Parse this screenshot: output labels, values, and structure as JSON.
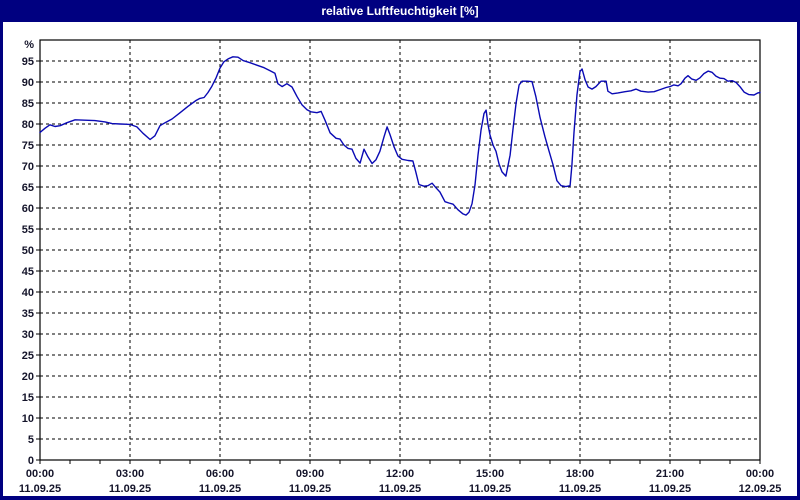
{
  "window": {
    "title": "relative Luftfeuchtigkeit [%]"
  },
  "colors": {
    "titlebar_bg": "#000080",
    "titlebar_text": "#ffffff",
    "frame": "#000080",
    "plot_bg": "#ffffff",
    "grid": "#000000",
    "line": "#0a0ab4",
    "axis_text": "#14142a"
  },
  "chart_data": {
    "type": "line",
    "title": "relative Luftfeuchtigkeit [%]",
    "ylabel": "%",
    "ylim": [
      0,
      100
    ],
    "xlim_hours": [
      0,
      24
    ],
    "grid": "dashed",
    "legend": "none",
    "y_ticks": [
      0,
      5,
      10,
      15,
      20,
      25,
      30,
      35,
      40,
      45,
      50,
      55,
      60,
      65,
      70,
      75,
      80,
      85,
      90,
      95
    ],
    "x_major_ticks": [
      {
        "hour": 0,
        "time": "00:00",
        "date": "11.09.25"
      },
      {
        "hour": 3,
        "time": "03:00",
        "date": "11.09.25"
      },
      {
        "hour": 6,
        "time": "06:00",
        "date": "11.09.25"
      },
      {
        "hour": 9,
        "time": "09:00",
        "date": "11.09.25"
      },
      {
        "hour": 12,
        "time": "12:00",
        "date": "11.09.25"
      },
      {
        "hour": 15,
        "time": "15:00",
        "date": "11.09.25"
      },
      {
        "hour": 18,
        "time": "18:00",
        "date": "11.09.25"
      },
      {
        "hour": 21,
        "time": "21:00",
        "date": "11.09.25"
      },
      {
        "hour": 24,
        "time": "00:00",
        "date": "12.09.25"
      }
    ],
    "x_minor_tick_interval_hours": 1,
    "series": [
      {
        "name": "relative Luftfeuchtigkeit [%]",
        "points": [
          [
            0.0,
            78.0
          ],
          [
            0.17,
            79.0
          ],
          [
            0.33,
            79.8
          ],
          [
            0.5,
            79.4
          ],
          [
            0.67,
            79.6
          ],
          [
            0.9,
            80.3
          ],
          [
            1.17,
            81.0
          ],
          [
            1.5,
            80.9
          ],
          [
            1.83,
            80.8
          ],
          [
            2.17,
            80.5
          ],
          [
            2.4,
            80.1
          ],
          [
            2.67,
            80.0
          ],
          [
            3.0,
            79.9
          ],
          [
            3.23,
            79.3
          ],
          [
            3.43,
            77.8
          ],
          [
            3.67,
            76.3
          ],
          [
            3.83,
            77.2
          ],
          [
            4.0,
            79.6
          ],
          [
            4.17,
            80.3
          ],
          [
            4.4,
            81.2
          ],
          [
            4.67,
            82.7
          ],
          [
            4.93,
            84.2
          ],
          [
            5.2,
            85.6
          ],
          [
            5.33,
            86.1
          ],
          [
            5.47,
            86.3
          ],
          [
            5.6,
            87.5
          ],
          [
            5.73,
            89.0
          ],
          [
            5.87,
            91.0
          ],
          [
            6.0,
            93.3
          ],
          [
            6.13,
            94.8
          ],
          [
            6.27,
            95.5
          ],
          [
            6.43,
            96.0
          ],
          [
            6.6,
            95.9
          ],
          [
            6.77,
            95.1
          ],
          [
            7.0,
            94.6
          ],
          [
            7.23,
            94.0
          ],
          [
            7.47,
            93.4
          ],
          [
            7.67,
            92.7
          ],
          [
            7.83,
            92.1
          ],
          [
            7.93,
            89.6
          ],
          [
            8.07,
            88.9
          ],
          [
            8.23,
            89.6
          ],
          [
            8.4,
            88.8
          ],
          [
            8.57,
            86.5
          ],
          [
            8.73,
            84.6
          ],
          [
            8.9,
            83.4
          ],
          [
            9.03,
            82.9
          ],
          [
            9.23,
            82.7
          ],
          [
            9.37,
            83.0
          ],
          [
            9.5,
            80.9
          ],
          [
            9.67,
            77.9
          ],
          [
            9.87,
            76.6
          ],
          [
            10.0,
            76.4
          ],
          [
            10.13,
            75.0
          ],
          [
            10.27,
            74.2
          ],
          [
            10.4,
            74.0
          ],
          [
            10.53,
            71.8
          ],
          [
            10.67,
            70.7
          ],
          [
            10.8,
            74.0
          ],
          [
            10.93,
            72.2
          ],
          [
            11.07,
            70.6
          ],
          [
            11.2,
            71.5
          ],
          [
            11.33,
            73.5
          ],
          [
            11.47,
            77.0
          ],
          [
            11.57,
            79.3
          ],
          [
            11.67,
            77.4
          ],
          [
            11.8,
            74.6
          ],
          [
            11.93,
            72.4
          ],
          [
            12.07,
            71.6
          ],
          [
            12.27,
            71.3
          ],
          [
            12.43,
            71.2
          ],
          [
            12.53,
            68.5
          ],
          [
            12.63,
            65.6
          ],
          [
            12.8,
            65.2
          ],
          [
            12.93,
            65.3
          ],
          [
            13.07,
            65.9
          ],
          [
            13.2,
            64.8
          ],
          [
            13.33,
            63.8
          ],
          [
            13.5,
            61.5
          ],
          [
            13.63,
            61.2
          ],
          [
            13.77,
            60.9
          ],
          [
            13.93,
            59.6
          ],
          [
            14.1,
            58.6
          ],
          [
            14.2,
            58.3
          ],
          [
            14.3,
            59.0
          ],
          [
            14.4,
            61.0
          ],
          [
            14.5,
            65.5
          ],
          [
            14.6,
            72.6
          ],
          [
            14.7,
            78.5
          ],
          [
            14.8,
            82.5
          ],
          [
            14.87,
            83.3
          ],
          [
            14.93,
            80.0
          ],
          [
            15.0,
            77.4
          ],
          [
            15.1,
            75.0
          ],
          [
            15.2,
            73.5
          ],
          [
            15.3,
            70.5
          ],
          [
            15.4,
            68.6
          ],
          [
            15.53,
            67.6
          ],
          [
            15.67,
            72.6
          ],
          [
            15.77,
            79.0
          ],
          [
            15.87,
            85.0
          ],
          [
            15.97,
            89.3
          ],
          [
            16.07,
            90.2
          ],
          [
            16.23,
            90.2
          ],
          [
            16.4,
            90.1
          ],
          [
            16.53,
            86.5
          ],
          [
            16.67,
            81.5
          ],
          [
            16.83,
            77.0
          ],
          [
            16.97,
            73.5
          ],
          [
            17.1,
            70.3
          ],
          [
            17.23,
            66.5
          ],
          [
            17.37,
            65.3
          ],
          [
            17.53,
            65.1
          ],
          [
            17.67,
            65.3
          ],
          [
            17.73,
            70.2
          ],
          [
            17.8,
            78.0
          ],
          [
            17.9,
            87.0
          ],
          [
            18.0,
            92.5
          ],
          [
            18.07,
            93.1
          ],
          [
            18.17,
            90.5
          ],
          [
            18.27,
            88.8
          ],
          [
            18.4,
            88.3
          ],
          [
            18.53,
            88.9
          ],
          [
            18.7,
            90.2
          ],
          [
            18.87,
            90.2
          ],
          [
            18.93,
            87.8
          ],
          [
            19.07,
            87.2
          ],
          [
            19.27,
            87.4
          ],
          [
            19.5,
            87.7
          ],
          [
            19.7,
            87.9
          ],
          [
            19.87,
            88.3
          ],
          [
            20.03,
            87.8
          ],
          [
            20.27,
            87.6
          ],
          [
            20.47,
            87.7
          ],
          [
            20.67,
            88.2
          ],
          [
            20.87,
            88.7
          ],
          [
            21.0,
            88.9
          ],
          [
            21.13,
            89.3
          ],
          [
            21.27,
            89.1
          ],
          [
            21.37,
            89.6
          ],
          [
            21.5,
            90.9
          ],
          [
            21.6,
            91.5
          ],
          [
            21.73,
            90.7
          ],
          [
            21.87,
            90.4
          ],
          [
            22.0,
            91.0
          ],
          [
            22.13,
            92.0
          ],
          [
            22.27,
            92.6
          ],
          [
            22.4,
            92.3
          ],
          [
            22.53,
            91.4
          ],
          [
            22.67,
            90.9
          ],
          [
            22.8,
            90.8
          ],
          [
            22.93,
            90.2
          ],
          [
            23.07,
            90.3
          ],
          [
            23.2,
            89.9
          ],
          [
            23.33,
            88.9
          ],
          [
            23.47,
            87.6
          ],
          [
            23.63,
            87.0
          ],
          [
            23.8,
            86.9
          ],
          [
            23.93,
            87.4
          ],
          [
            24.0,
            87.5
          ]
        ]
      }
    ]
  }
}
